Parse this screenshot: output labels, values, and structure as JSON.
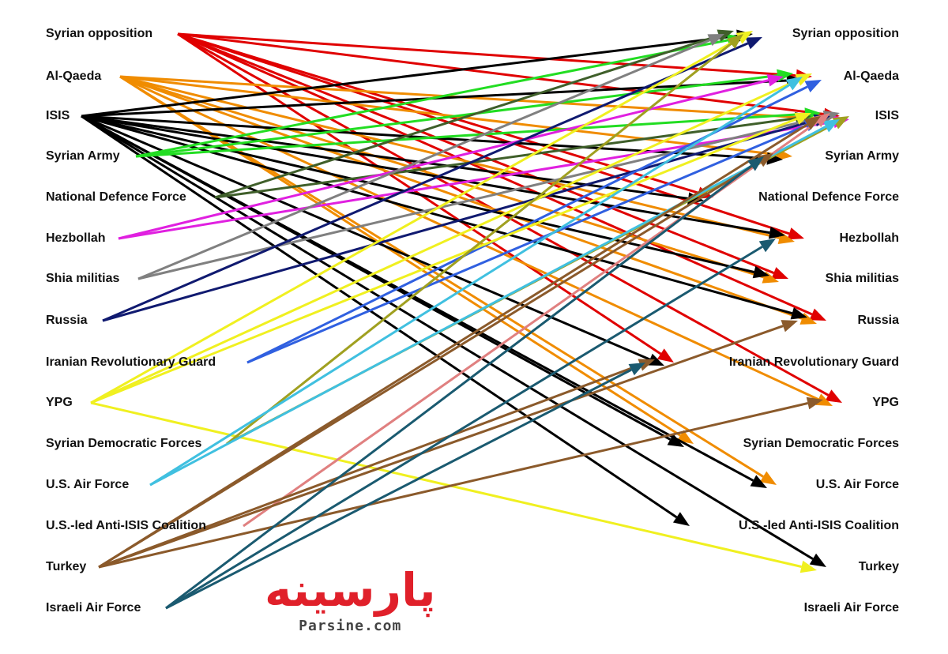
{
  "nodes": [
    "Syrian opposition",
    "Al-Qaeda",
    "ISIS",
    "Syrian Army",
    "National Defence Force",
    "Hezbollah",
    "Shia militias",
    "Russia",
    "Iranian Revolutionary Guard",
    "YPG",
    "Syrian Democratic Forces",
    "U.S. Air Force",
    "U.S.-led Anti-ISIS Coalition",
    "Turkey",
    "Israeli Air Force"
  ],
  "source_colors": [
    "#e00000",
    "#f08c00",
    "#000000",
    "#22dd22",
    "#3f5f2a",
    "#e020e0",
    "#808080",
    "#101a70",
    "#3060e0",
    "#f0f020",
    "#a0a020",
    "#40c0e0",
    "#e08080",
    "#8b5a2b",
    "#1a5a70"
  ],
  "edges": [
    [
      0,
      2
    ],
    [
      0,
      4
    ],
    [
      0,
      5
    ],
    [
      0,
      6
    ],
    [
      0,
      7
    ],
    [
      0,
      8
    ],
    [
      0,
      9
    ],
    [
      0,
      1
    ],
    [
      1,
      2
    ],
    [
      1,
      3
    ],
    [
      1,
      5
    ],
    [
      1,
      6
    ],
    [
      1,
      7
    ],
    [
      1,
      9
    ],
    [
      1,
      10
    ],
    [
      1,
      11
    ],
    [
      2,
      0
    ],
    [
      2,
      1
    ],
    [
      2,
      3
    ],
    [
      2,
      4
    ],
    [
      2,
      5
    ],
    [
      2,
      6
    ],
    [
      2,
      7
    ],
    [
      2,
      8
    ],
    [
      2,
      10
    ],
    [
      2,
      11
    ],
    [
      2,
      12
    ],
    [
      2,
      13
    ],
    [
      3,
      0
    ],
    [
      3,
      1
    ],
    [
      3,
      2
    ],
    [
      4,
      0
    ],
    [
      4,
      2
    ],
    [
      5,
      1
    ],
    [
      5,
      2
    ],
    [
      6,
      0
    ],
    [
      6,
      2
    ],
    [
      7,
      0
    ],
    [
      7,
      2
    ],
    [
      8,
      1
    ],
    [
      8,
      2
    ],
    [
      9,
      0
    ],
    [
      9,
      1
    ],
    [
      9,
      2
    ],
    [
      9,
      13
    ],
    [
      10,
      0
    ],
    [
      10,
      2
    ],
    [
      11,
      1
    ],
    [
      11,
      2
    ],
    [
      12,
      2
    ],
    [
      13,
      2
    ],
    [
      13,
      7
    ],
    [
      13,
      8
    ],
    [
      13,
      9
    ],
    [
      13,
      3
    ],
    [
      14,
      3
    ],
    [
      14,
      5
    ],
    [
      14,
      8
    ]
  ],
  "watermark": {
    "persian": "پارسینه",
    "latin": "Parsine.com"
  }
}
